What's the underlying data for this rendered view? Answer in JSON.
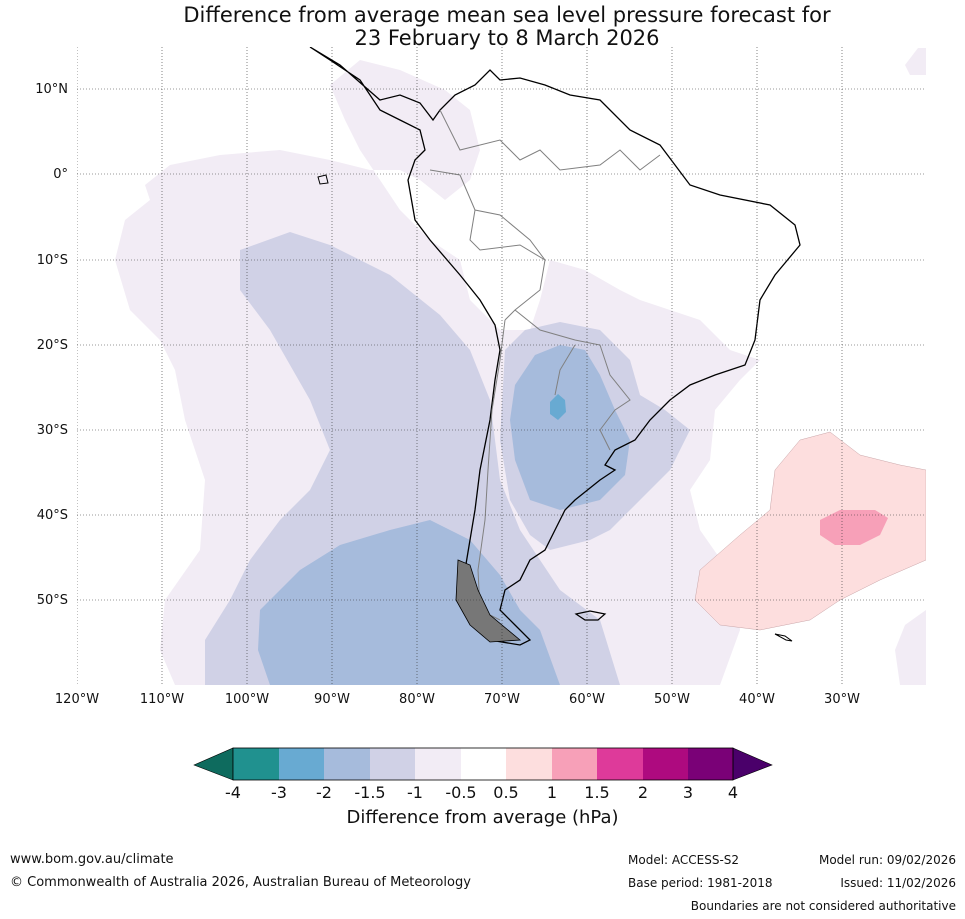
{
  "title": {
    "line1": "Difference from average mean sea level pressure forecast for",
    "line2": "23 February to 8 March 2026"
  },
  "map": {
    "region": "South America",
    "lat_labels": [
      "10°N",
      "0°",
      "10°S",
      "20°S",
      "30°S",
      "40°S",
      "50°S"
    ],
    "lon_labels": [
      "120°W",
      "110°W",
      "100°W",
      "90°W",
      "80°W",
      "70°W",
      "60°W",
      "50°W",
      "40°W",
      "30°W"
    ]
  },
  "colorbar": {
    "title": "Difference from average (hPa)",
    "tick_labels": [
      "-4",
      "-3",
      "-2",
      "-1.5",
      "-1",
      "-0.5",
      "0.5",
      "1",
      "1.5",
      "2",
      "3",
      "4"
    ],
    "colors": [
      "#0e6b5e",
      "#20918f",
      "#68aad2",
      "#a6bbdc",
      "#d0d1e6",
      "#f2ecf5",
      "#ffffff",
      "#fddede",
      "#f7a0b8",
      "#de3a9a",
      "#ae0a7f",
      "#7a0177",
      "#4a006a"
    ]
  },
  "footer": {
    "website": "www.bom.gov.au/climate",
    "copyright": "© Commonwealth of Australia 2026, Australian Bureau of Meteorology",
    "model": "Model: ACCESS-S2",
    "base_period": "Base period: 1981-2018",
    "model_run": "Model run: 09/02/2026",
    "issued": "Issued: 11/02/2026",
    "disclaimer": "Boundaries are not considered authoritative"
  }
}
